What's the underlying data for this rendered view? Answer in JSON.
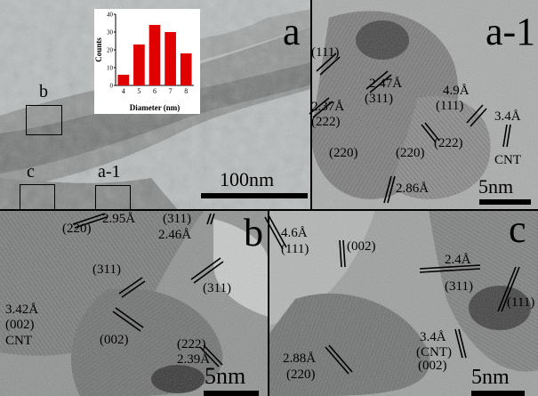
{
  "panels": {
    "a": {
      "letter": "a",
      "scale_label": "100nm",
      "box_labels": {
        "b": "b",
        "c": "c",
        "a1": "a-1"
      }
    },
    "a1": {
      "letter": "a-1",
      "scale_label": "5nm",
      "annotations": [
        "(111)",
        "2.47Å",
        "(311)",
        "2.37Å",
        "(222)",
        "4.9Å",
        "(111)",
        "3.4Å",
        "CNT",
        "(222)",
        "(220)",
        "(220)",
        "2.86Å"
      ]
    },
    "b": {
      "letter": "b",
      "scale_label": "5nm",
      "annotations": [
        "(220)",
        "2.95Å",
        "(311)",
        "2.46Å",
        "(311)",
        "(311)",
        "3.42Å",
        "(002)",
        "CNT",
        "(002)",
        "(222)",
        "2.39Å"
      ]
    },
    "c": {
      "letter": "c",
      "scale_label": "5nm",
      "annotations": [
        "4.6Å",
        "(111)",
        "(002)",
        "2.4Å",
        "(311)",
        "(111)",
        "3.4Å",
        "(CNT)",
        "(002)",
        "2.88Å",
        "(220)"
      ]
    }
  },
  "chart_data": {
    "type": "bar",
    "categories": [
      "4",
      "5",
      "6",
      "7",
      "8"
    ],
    "values": [
      6,
      23,
      34,
      30,
      18
    ],
    "xlabel": "Diameter (nm)",
    "ylabel": "Counts",
    "ylim": [
      0,
      40
    ],
    "yticks": [
      "0",
      "10",
      "20",
      "30",
      "40"
    ],
    "bar_color": "#e00000"
  }
}
